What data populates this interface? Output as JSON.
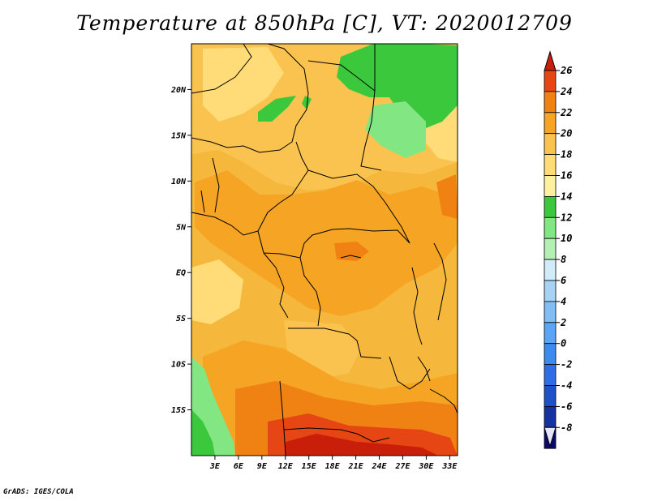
{
  "title": "Temperature at 850hPa [C], VT: 2020012709",
  "credit": "GrADS: IGES/COLA",
  "colors": {
    "map_base": "#f5b83c",
    "land_border": "#000000",
    "levels": {
      "-8": "#0a0a6e",
      "-6": "#1432a0",
      "-4": "#1e50c8",
      "-2": "#2d6ee6",
      "0": "#3c8cf0",
      "2": "#5aa5f5",
      "4": "#82bef5",
      "6": "#a5d2f5",
      "8": "#d2ebfa",
      "10": "#b4f0b4",
      "12": "#82e682",
      "14": "#3cc83c",
      "16": "#fff0a0",
      "18": "#ffdc78",
      "20": "#fac350",
      "22": "#f5a523",
      "24": "#f08214",
      "26": "#e64614",
      "over": "#c81e0a"
    }
  },
  "map": {
    "lat_range": [
      -20,
      25
    ],
    "lon_range": [
      0,
      34
    ],
    "lat_ticks": [
      "20N",
      "15N",
      "10N",
      "5N",
      "EQ",
      "5S",
      "10S",
      "15S"
    ],
    "lat_values": [
      20,
      15,
      10,
      5,
      0,
      -5,
      -10,
      -15
    ],
    "lon_ticks": [
      "3E",
      "6E",
      "9E",
      "12E",
      "15E",
      "18E",
      "21E",
      "24E",
      "27E",
      "30E",
      "33E"
    ],
    "lon_values": [
      3,
      6,
      9,
      12,
      15,
      18,
      21,
      24,
      27,
      30,
      33
    ]
  },
  "colorbar": {
    "labels": [
      "26",
      "24",
      "22",
      "20",
      "18",
      "16",
      "14",
      "12",
      "10",
      "8",
      "6",
      "4",
      "2",
      "0",
      "-2",
      "-4",
      "-6",
      "-8"
    ],
    "colors": [
      "#e64614",
      "#f08214",
      "#f5a523",
      "#fac350",
      "#ffdc78",
      "#fff0a0",
      "#3cc83c",
      "#82e682",
      "#b4f0b4",
      "#d2ebfa",
      "#a5d2f5",
      "#82bef5",
      "#5aa5f5",
      "#3c8cf0",
      "#2d6ee6",
      "#1e50c8",
      "#1432a0",
      "#0a0a6e"
    ],
    "top_color": "#c81e0a",
    "bottom_color": "#e6e6fa"
  }
}
